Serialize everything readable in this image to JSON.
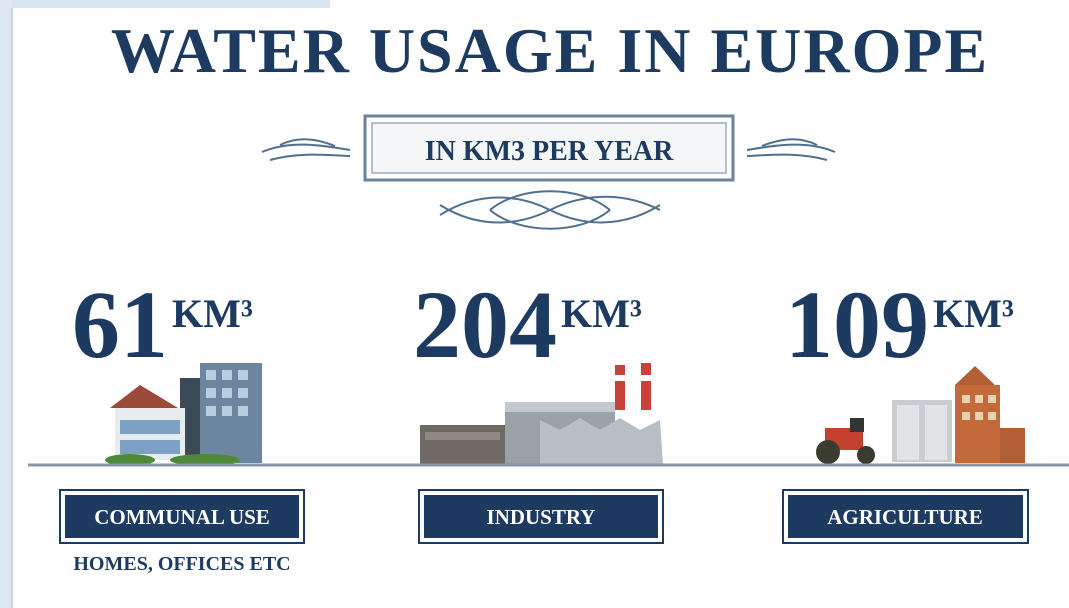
{
  "title": "WATER USAGE IN EUROPE",
  "subtitle": "IN KM3 PER YEAR",
  "items": [
    {
      "value": 61,
      "unit": "KM³",
      "label": "COMMUNAL USE",
      "note": "HOMES, OFFICES ETC"
    },
    {
      "value": 204,
      "unit": "KM³",
      "label": "INDUSTRY"
    },
    {
      "value": 109,
      "unit": "KM³",
      "label": "AGRICULTURE"
    }
  ]
}
